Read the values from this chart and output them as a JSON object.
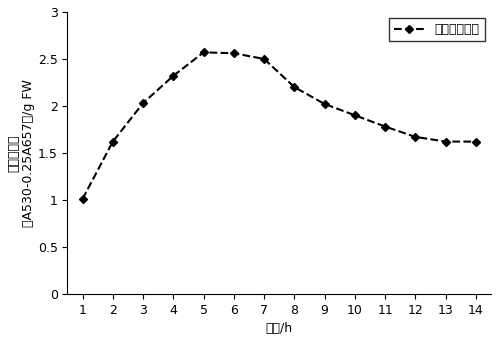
{
  "x": [
    1,
    2,
    3,
    4,
    5,
    6,
    7,
    8,
    9,
    10,
    11,
    12,
    13,
    14
  ],
  "y": [
    1.01,
    1.62,
    2.03,
    2.32,
    2.57,
    2.56,
    2.5,
    2.2,
    2.02,
    1.9,
    1.78,
    1.67,
    1.62,
    1.62
  ],
  "xlabel": "时间/h",
  "ylabel_line1": "花色素含量",
  "ylabel_line2": "（A530-0.25A657）/g FW",
  "legend_label": "花色素苷含量",
  "xlim": [
    0.5,
    14.5
  ],
  "ylim": [
    0,
    3
  ],
  "yticks": [
    0,
    0.5,
    1,
    1.5,
    2,
    2.5,
    3
  ],
  "xticks": [
    1,
    2,
    3,
    4,
    5,
    6,
    7,
    8,
    9,
    10,
    11,
    12,
    13,
    14
  ],
  "line_color": "#000000",
  "marker": "D",
  "markersize": 4,
  "linewidth": 1.5,
  "linestyle": "--",
  "background_color": "#ffffff",
  "font_size_ticks": 9,
  "font_size_label": 9,
  "font_size_legend": 9
}
